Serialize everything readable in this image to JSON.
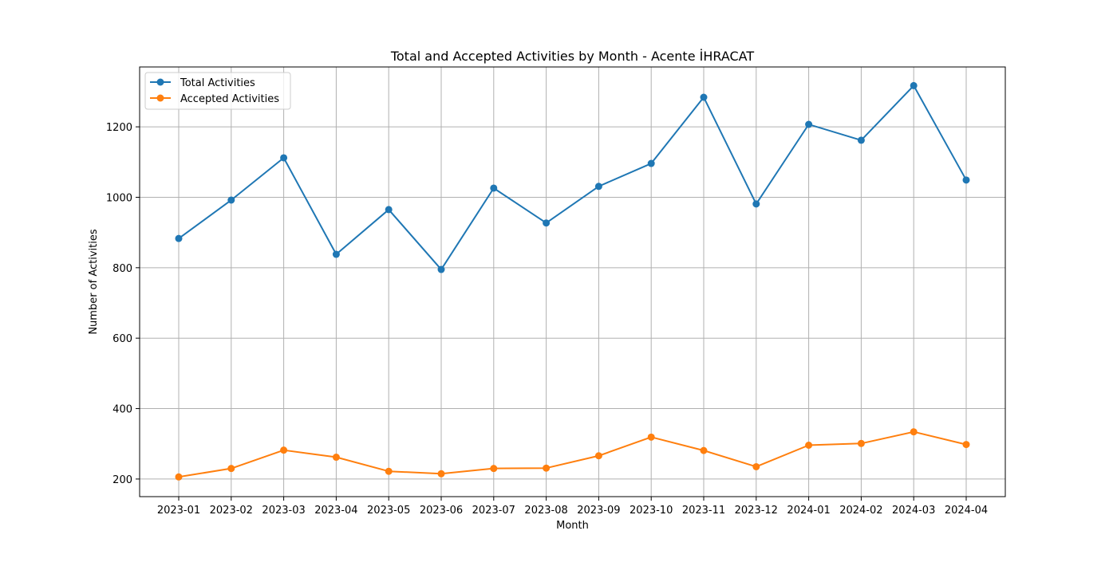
{
  "chart_data": {
    "type": "line",
    "title": "Total and Accepted Activities by Month - Acente İHRACAT",
    "xlabel": "Month",
    "ylabel": "Number of Activities",
    "categories": [
      "2023-01",
      "2023-02",
      "2023-03",
      "2023-04",
      "2023-05",
      "2023-06",
      "2023-07",
      "2023-08",
      "2023-09",
      "2023-10",
      "2023-11",
      "2023-12",
      "2024-01",
      "2024-02",
      "2024-03",
      "2024-04"
    ],
    "yticks": [
      200,
      400,
      600,
      800,
      1000,
      1200
    ],
    "ylim": [
      150,
      1370
    ],
    "grid": true,
    "legend_position": "top-left",
    "series": [
      {
        "name": "Total Activities",
        "color": "#1f77b4",
        "values": [
          883,
          992,
          1112,
          838,
          965,
          795,
          1026,
          927,
          1031,
          1096,
          1284,
          981,
          1207,
          1162,
          1317,
          1049
        ]
      },
      {
        "name": "Accepted Activities",
        "color": "#ff7f0e",
        "values": [
          206,
          230,
          282,
          262,
          222,
          215,
          230,
          231,
          266,
          319,
          281,
          235,
          296,
          301,
          334,
          298
        ]
      }
    ]
  }
}
